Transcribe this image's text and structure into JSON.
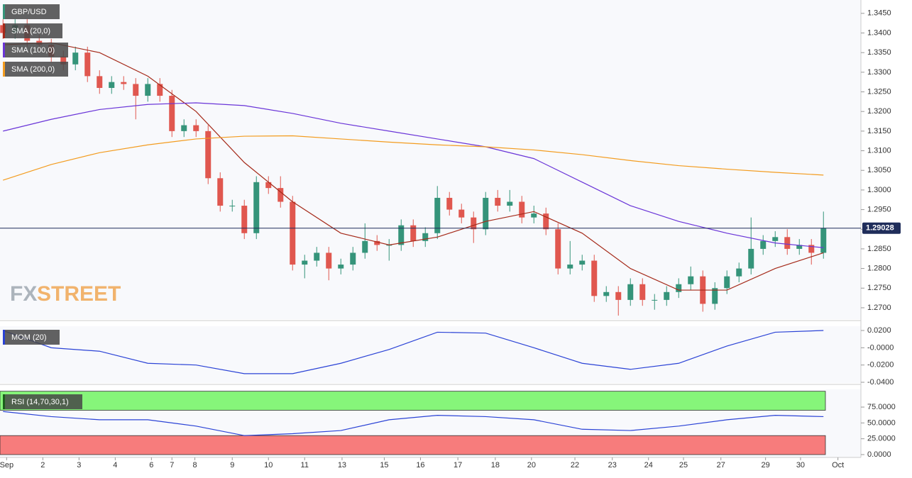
{
  "chart_data": [
    {
      "type": "candlestick",
      "title": "GBP/USD",
      "open": [
        1.342,
        1.34,
        1.342,
        1.338,
        1.337,
        1.334,
        1.332,
        1.335,
        1.329,
        1.326,
        1.3275,
        1.327,
        1.324,
        1.327,
        1.324,
        1.315,
        1.3165,
        1.315,
        1.303,
        1.296,
        1.296,
        1.289,
        1.302,
        1.3005,
        1.297,
        1.281,
        1.282,
        1.284,
        1.28,
        1.281,
        1.284,
        1.287,
        1.286,
        1.286,
        1.291,
        1.287,
        1.289,
        1.298,
        1.295,
        1.293,
        1.29,
        1.298,
        1.296,
        1.297,
        1.293,
        1.294,
        1.29,
        1.28,
        1.281,
        1.282,
        1.273,
        1.274,
        1.272,
        1.276,
        1.272,
        1.272,
        1.274,
        1.276,
        1.278,
        1.271,
        1.275,
        1.278,
        1.28,
        1.285,
        1.287,
        1.288,
        1.285,
        1.286,
        1.284
      ],
      "high": [
        1.3435,
        1.3435,
        1.3435,
        1.3395,
        1.3385,
        1.3355,
        1.3365,
        1.3365,
        1.3305,
        1.329,
        1.329,
        1.3285,
        1.3285,
        1.3285,
        1.3255,
        1.318,
        1.318,
        1.3165,
        1.3045,
        1.2975,
        1.2975,
        1.3035,
        1.3035,
        1.3035,
        1.2985,
        1.2835,
        1.2855,
        1.2855,
        1.2825,
        1.2855,
        1.2915,
        1.2885,
        1.2875,
        1.2925,
        1.2925,
        1.2905,
        1.301,
        1.2995,
        1.2965,
        1.2945,
        1.2995,
        1.3,
        1.3,
        1.2985,
        1.296,
        1.2955,
        1.2915,
        1.287,
        1.2835,
        1.2835,
        1.2755,
        1.2755,
        1.2775,
        1.2775,
        1.2735,
        1.2755,
        1.2775,
        1.2805,
        1.2795,
        1.2765,
        1.2795,
        1.2815,
        1.293,
        1.2885,
        1.2895,
        1.29,
        1.2875,
        1.2875,
        1.2945
      ],
      "low": [
        1.3385,
        1.3385,
        1.3365,
        1.3355,
        1.3325,
        1.3305,
        1.3305,
        1.3275,
        1.3245,
        1.3245,
        1.3255,
        1.318,
        1.3225,
        1.3225,
        1.3135,
        1.3135,
        1.3135,
        1.3015,
        1.2945,
        1.2945,
        1.2875,
        1.2875,
        1.299,
        1.2955,
        1.2795,
        1.2775,
        1.2805,
        1.277,
        1.2785,
        1.2795,
        1.2825,
        1.2845,
        1.282,
        1.2845,
        1.2855,
        1.2855,
        1.2875,
        1.2935,
        1.2915,
        1.2865,
        1.2885,
        1.2945,
        1.2945,
        1.2915,
        1.2915,
        1.2885,
        1.2785,
        1.2785,
        1.2795,
        1.2715,
        1.2715,
        1.268,
        1.2705,
        1.2705,
        1.2695,
        1.2705,
        1.2725,
        1.2745,
        1.269,
        1.2695,
        1.2735,
        1.2765,
        1.2785,
        1.2835,
        1.2855,
        1.2835,
        1.2835,
        1.281,
        1.2825
      ],
      "close": [
        1.34,
        1.342,
        1.338,
        1.337,
        1.334,
        1.332,
        1.335,
        1.329,
        1.326,
        1.3275,
        1.327,
        1.324,
        1.327,
        1.324,
        1.315,
        1.3165,
        1.315,
        1.303,
        1.296,
        1.296,
        1.289,
        1.302,
        1.3005,
        1.297,
        1.281,
        1.282,
        1.284,
        1.28,
        1.281,
        1.284,
        1.287,
        1.286,
        1.286,
        1.291,
        1.287,
        1.289,
        1.298,
        1.295,
        1.293,
        1.29,
        1.298,
        1.296,
        1.297,
        1.293,
        1.294,
        1.29,
        1.28,
        1.281,
        1.282,
        1.273,
        1.274,
        1.272,
        1.276,
        1.272,
        1.272,
        1.274,
        1.276,
        1.278,
        1.271,
        1.275,
        1.278,
        1.28,
        1.285,
        1.287,
        1.288,
        1.285,
        1.286,
        1.284,
        1.2903
      ],
      "up_color": "#35947a",
      "down_color": "#e0574f",
      "series": [
        {
          "name": "SMA (20,0)",
          "color": "#a52a1a",
          "x": [
            0,
            4,
            8,
            12,
            16,
            20,
            24,
            28,
            32,
            36,
            40,
            44,
            48,
            52,
            56,
            60,
            64,
            68
          ],
          "values": [
            1.337,
            1.3375,
            1.335,
            1.329,
            1.32,
            1.307,
            1.297,
            1.289,
            1.286,
            1.288,
            1.292,
            1.2945,
            1.289,
            1.28,
            1.2745,
            1.2745,
            1.28,
            1.284
          ]
        },
        {
          "name": "SMA (100,0)",
          "color": "#6a35d8",
          "x": [
            0,
            4,
            8,
            12,
            16,
            20,
            24,
            28,
            32,
            36,
            40,
            44,
            48,
            52,
            56,
            60,
            64,
            68
          ],
          "values": [
            1.315,
            1.318,
            1.3205,
            1.3218,
            1.3222,
            1.3215,
            1.3195,
            1.317,
            1.315,
            1.313,
            1.311,
            1.308,
            1.302,
            1.296,
            1.292,
            1.289,
            1.2865,
            1.2853
          ]
        },
        {
          "name": "SMA (200,0)",
          "color": "#f39c1f",
          "x": [
            0,
            4,
            8,
            12,
            16,
            20,
            24,
            28,
            32,
            36,
            40,
            44,
            48,
            52,
            56,
            60,
            64,
            68
          ],
          "values": [
            1.3025,
            1.3065,
            1.3095,
            1.3115,
            1.313,
            1.3137,
            1.3138,
            1.313,
            1.3122,
            1.3115,
            1.311,
            1.3102,
            1.309,
            1.3075,
            1.3062,
            1.3053,
            1.3045,
            1.3038
          ]
        }
      ],
      "current_price": {
        "value": 1.29028,
        "label": "1.29028"
      },
      "watermark": [
        "FX",
        "STREET"
      ],
      "ylim": [
        1.2671,
        1.3484
      ],
      "yticks": [
        {
          "value": 1.345,
          "label": "1.3450"
        },
        {
          "value": 1.34,
          "label": "1.3400"
        },
        {
          "value": 1.335,
          "label": "1.3350"
        },
        {
          "value": 1.33,
          "label": "1.3300"
        },
        {
          "value": 1.325,
          "label": "1.3250"
        },
        {
          "value": 1.32,
          "label": "1.3200"
        },
        {
          "value": 1.315,
          "label": "1.3150"
        },
        {
          "value": 1.31,
          "label": "1.3100"
        },
        {
          "value": 1.305,
          "label": "1.3050"
        },
        {
          "value": 1.3,
          "label": "1.3000"
        },
        {
          "value": 1.295,
          "label": "1.2950"
        },
        {
          "value": 1.29,
          "label": "1.2900"
        },
        {
          "value": 1.285,
          "label": "1.2850"
        },
        {
          "value": 1.28,
          "label": "1.2800"
        },
        {
          "value": 1.275,
          "label": "1.2750"
        },
        {
          "value": 1.27,
          "label": "1.2700"
        }
      ],
      "xlim": [
        -0.25,
        71.15
      ],
      "xticks": [
        {
          "value": 0.3,
          "label": "Sep"
        },
        {
          "value": 3.3,
          "label": "2"
        },
        {
          "value": 6.3,
          "label": "3"
        },
        {
          "value": 9.3,
          "label": "4"
        },
        {
          "value": 12.3,
          "label": "6"
        },
        {
          "value": 14,
          "label": "7"
        },
        {
          "value": 15.9,
          "label": "8"
        },
        {
          "value": 19,
          "label": "9"
        },
        {
          "value": 22,
          "label": "10"
        },
        {
          "value": 25,
          "label": "11"
        },
        {
          "value": 28.1,
          "label": "13"
        },
        {
          "value": 31.6,
          "label": "15"
        },
        {
          "value": 34.6,
          "label": "16"
        },
        {
          "value": 37.7,
          "label": "17"
        },
        {
          "value": 40.8,
          "label": "18"
        },
        {
          "value": 43.8,
          "label": "20"
        },
        {
          "value": 47.4,
          "label": "22"
        },
        {
          "value": 50.5,
          "label": "23"
        },
        {
          "value": 53.5,
          "label": "24"
        },
        {
          "value": 56.4,
          "label": "25"
        },
        {
          "value": 59.5,
          "label": "27"
        },
        {
          "value": 63.2,
          "label": "29"
        },
        {
          "value": 66.1,
          "label": "30"
        },
        {
          "value": 69.2,
          "label": "Oct"
        }
      ]
    },
    {
      "type": "line",
      "title": "MOM (20)",
      "series": [
        {
          "color": "#2b43d6",
          "x": [
            0,
            4,
            8,
            12,
            16,
            20,
            24,
            28,
            32,
            36,
            40,
            44,
            48,
            52,
            56,
            60,
            64,
            68
          ],
          "values": [
            0.02,
            0.0,
            -0.004,
            -0.018,
            -0.02,
            -0.03,
            -0.03,
            -0.018,
            -0.002,
            0.018,
            0.017,
            0.0,
            -0.018,
            -0.025,
            -0.018,
            0.002,
            0.018,
            0.02
          ]
        }
      ],
      "ylim": [
        -0.0408,
        0.0233
      ],
      "yticks": [
        {
          "value": 0.02,
          "label": "0.0200"
        },
        {
          "value": 0,
          "label": "-0.0000"
        },
        {
          "value": -0.02,
          "label": "-0.0200"
        },
        {
          "value": -0.04,
          "label": "-0.0400"
        }
      ]
    },
    {
      "type": "line",
      "title": "RSI (14,70,30,1)",
      "series": [
        {
          "color": "#2b43d6",
          "x": [
            0,
            4,
            8,
            12,
            16,
            20,
            24,
            28,
            32,
            36,
            40,
            44,
            48,
            52,
            56,
            60,
            64,
            68
          ],
          "values": [
            68,
            60,
            55,
            55,
            45,
            30,
            33,
            38,
            55,
            62,
            60,
            55,
            40,
            38,
            45,
            55,
            62,
            60
          ]
        }
      ],
      "overbought": 70,
      "oversold": 30,
      "ylim": [
        0,
        100
      ],
      "yticks": [
        {
          "value": 75,
          "label": "75.0000"
        },
        {
          "value": 50,
          "label": "50.0000"
        },
        {
          "value": 25,
          "label": "25.0000"
        },
        {
          "value": 0,
          "label": "0.0000"
        }
      ]
    }
  ]
}
